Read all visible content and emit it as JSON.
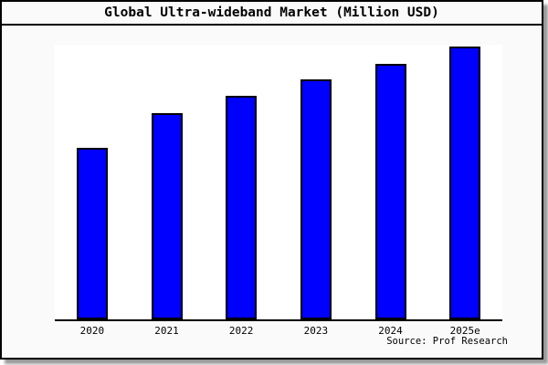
{
  "window": {
    "background_color": "#fafafa",
    "border_color": "#000000",
    "shadow_color": "#9a9a9a"
  },
  "header": {
    "title": "Global Ultra-wideband Market (Million USD)"
  },
  "chart": {
    "categories": [
      "2020",
      "2021",
      "2022",
      "2023",
      "2024",
      "2025e"
    ],
    "bar_heights_pct": [
      62.5,
      75.1,
      81.4,
      87.4,
      93.0,
      99.3
    ],
    "bar_color": "#0000ff",
    "bar_border_color": "#000000",
    "plot_background": "#ffffff",
    "axis_color": "#000000"
  },
  "footer": {
    "source": "Source: Prof Research"
  },
  "chart_data": {
    "type": "bar",
    "title": "Global Ultra-wideband Market (Million USD)",
    "xlabel": "",
    "ylabel": "",
    "categories": [
      "2020",
      "2021",
      "2022",
      "2023",
      "2024",
      "2025e"
    ],
    "values_relative_pct_of_max": [
      62.9,
      75.6,
      81.9,
      88.0,
      93.6,
      100.0
    ],
    "y_axis_tick_labels_visible": false,
    "gridlines": false,
    "legend_position": "none",
    "bar_color": "#0000ff",
    "annotations": [
      "Source: Prof Research"
    ]
  }
}
